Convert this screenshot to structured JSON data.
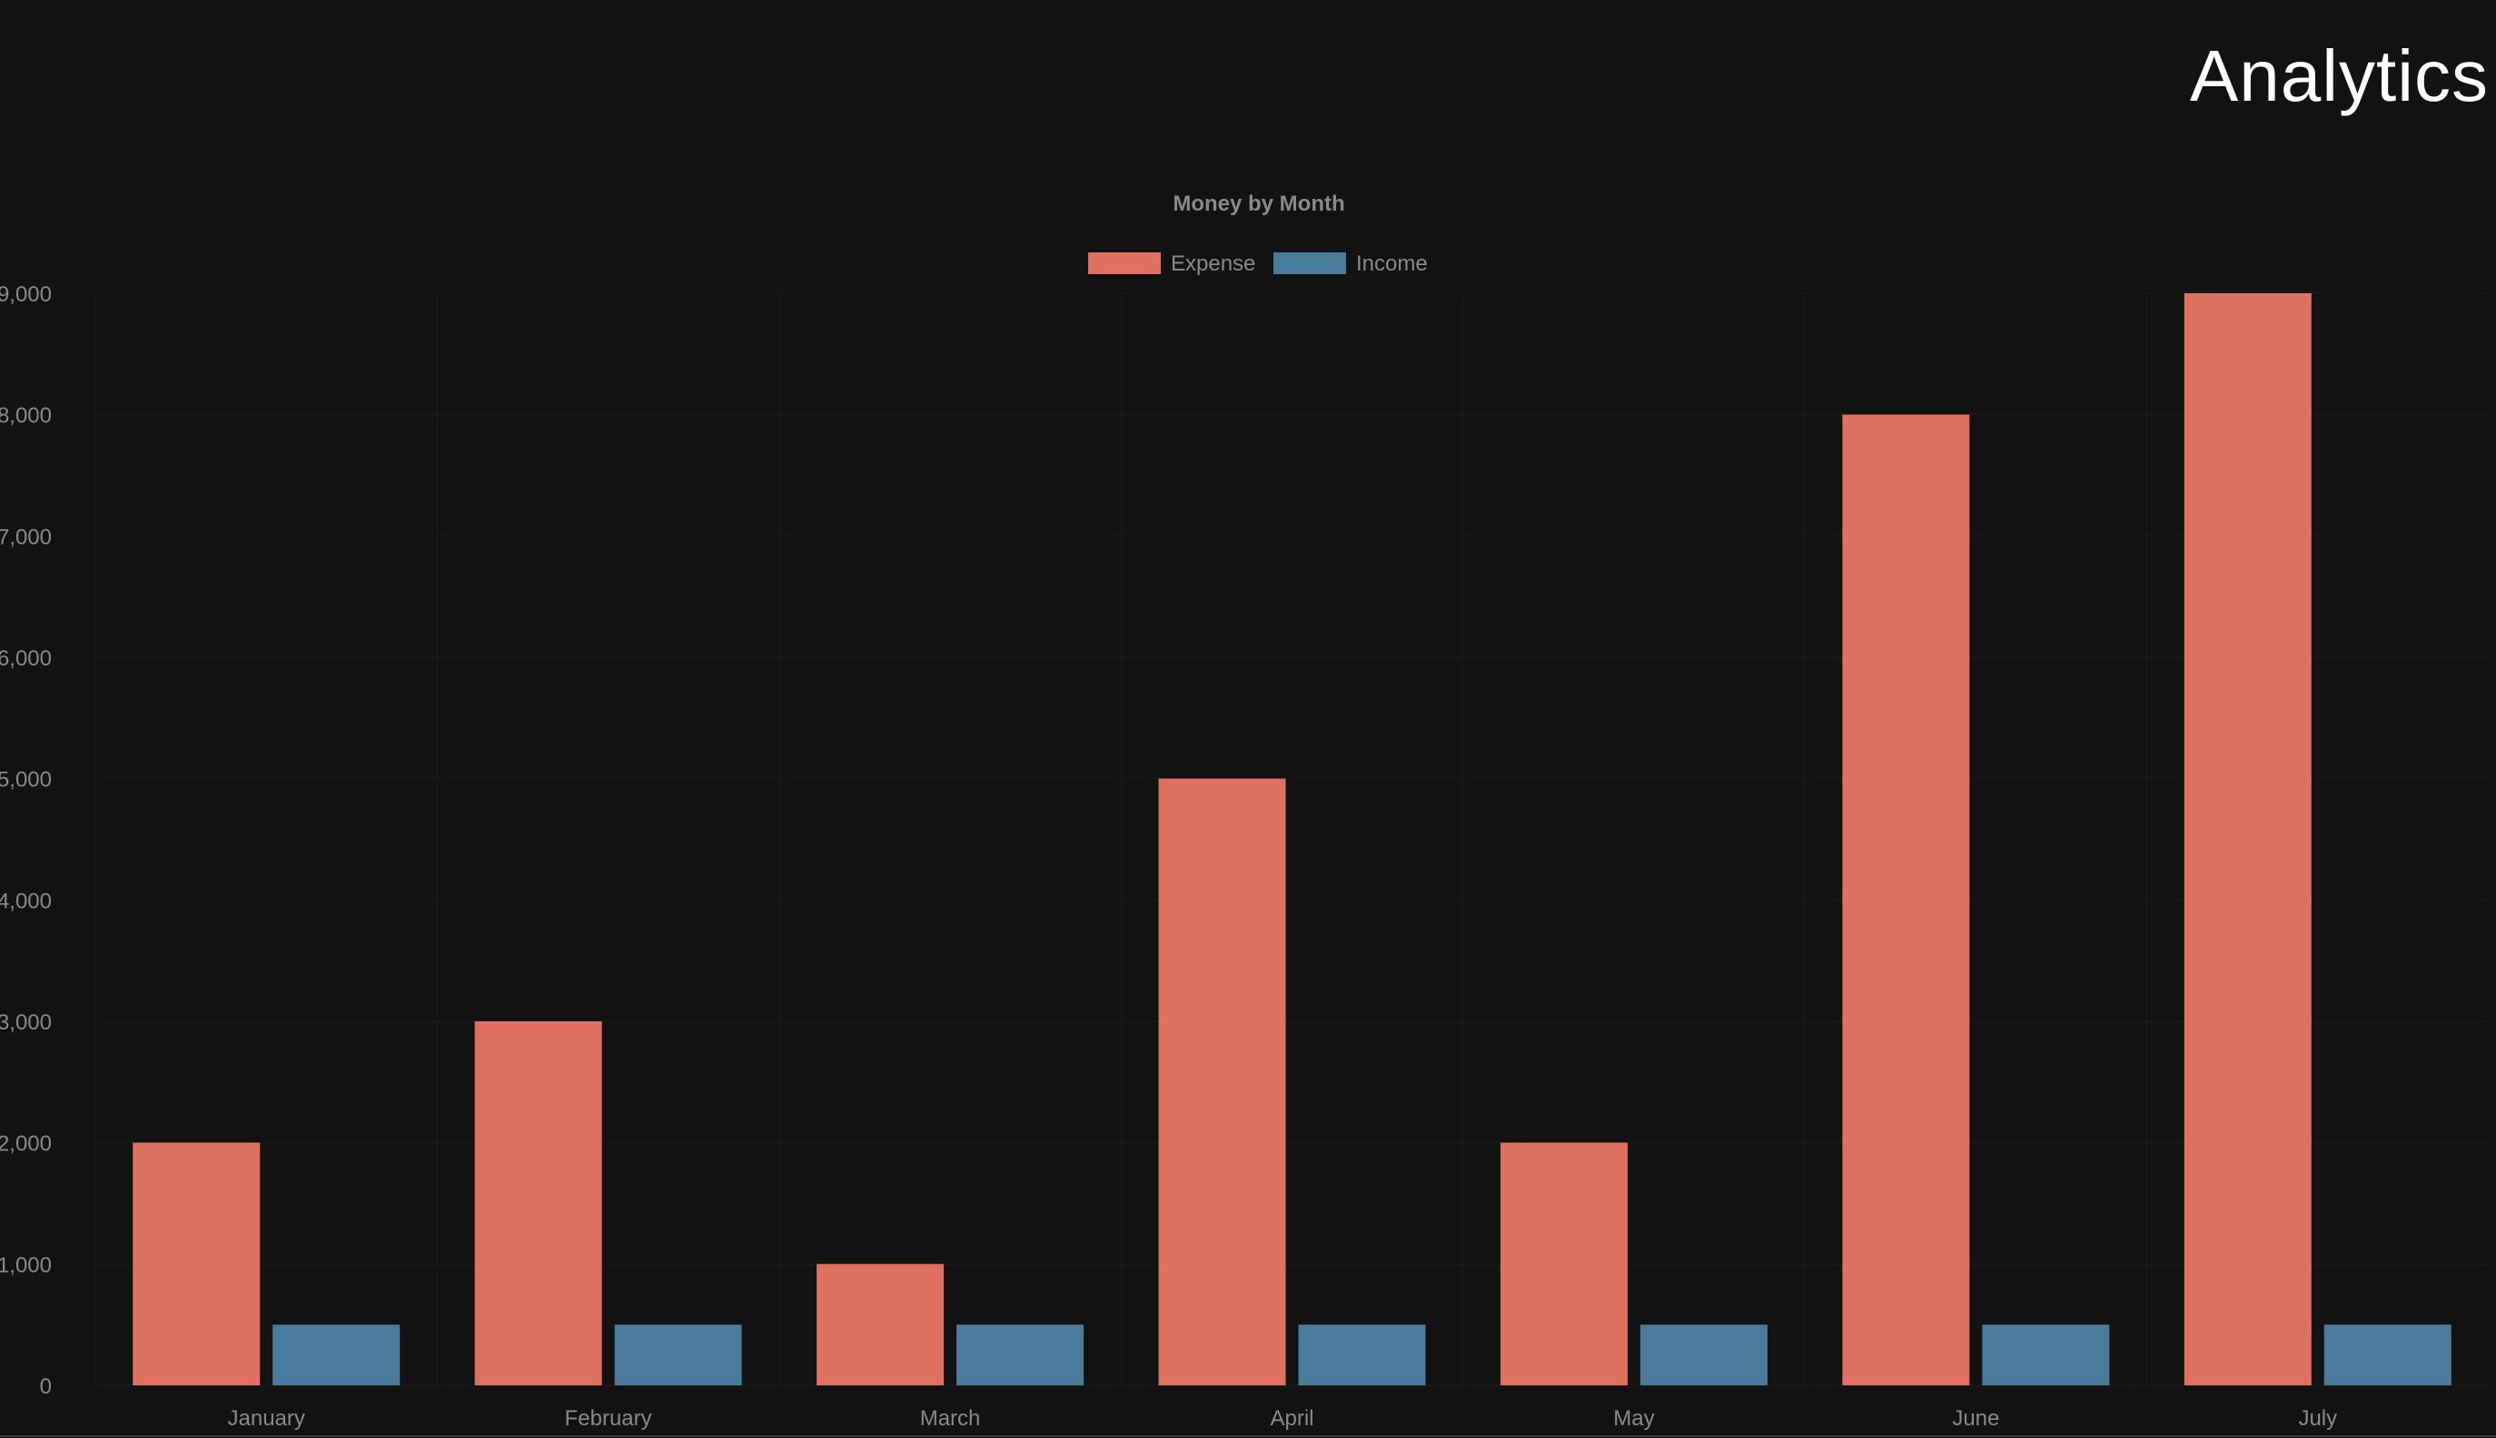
{
  "page": {
    "title": "Analytics"
  },
  "chart_data": {
    "type": "bar",
    "title": "Money by Month",
    "categories": [
      "January",
      "February",
      "March",
      "April",
      "May",
      "June",
      "July"
    ],
    "series": [
      {
        "name": "Expense",
        "color": "#df7160",
        "values": [
          2000,
          3000,
          1000,
          5000,
          2000,
          8000,
          9000
        ]
      },
      {
        "name": "Income",
        "color": "#4a7b9d",
        "values": [
          500,
          500,
          500,
          500,
          500,
          500,
          500
        ]
      }
    ],
    "ylim": [
      0,
      9000
    ],
    "yticks": [
      0,
      1000,
      2000,
      3000,
      4000,
      5000,
      6000,
      7000,
      8000,
      9000
    ],
    "ytick_labels": [
      "0",
      "1,000",
      "2,000",
      "3,000",
      "4,000",
      "5,000",
      "6,000",
      "7,000",
      "8,000",
      "9,000"
    ],
    "xlabel": "",
    "ylabel": "",
    "legend_position": "top-center",
    "grid": true
  }
}
